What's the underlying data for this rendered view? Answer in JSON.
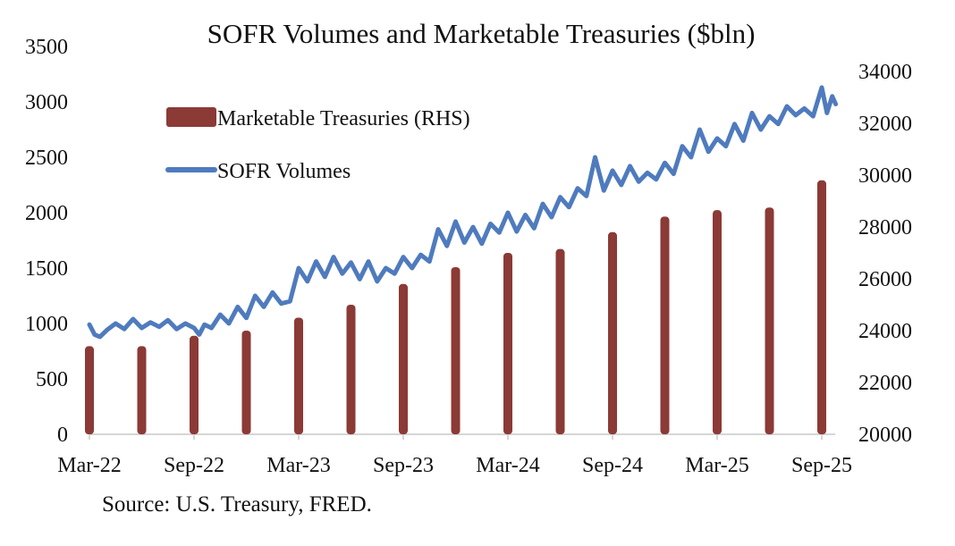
{
  "chart_data": {
    "type": "bar+line",
    "title": "SOFR Volumes and Marketable Treasuries ($bln)",
    "source": "Source: U.S. Treasury, FRED.",
    "legend": {
      "placement": "top-left",
      "entries": [
        {
          "name": "Marketable Treasuries (RHS)",
          "kind": "bar",
          "color": "#8B3A36"
        },
        {
          "name": "SOFR Volumes",
          "kind": "line",
          "color": "#4F7BBE"
        }
      ]
    },
    "x_axis": {
      "tick_labels": [
        "Mar-22",
        "Sep-22",
        "Mar-23",
        "Sep-23",
        "Mar-24",
        "Sep-24",
        "Mar-25",
        "Sep-25"
      ],
      "range_months_from_mar22": [
        0,
        42.8
      ]
    },
    "y_left": {
      "ylim": [
        0,
        3500
      ],
      "ticks": [
        0,
        500,
        1000,
        1500,
        2000,
        2500,
        3000,
        3500
      ],
      "tick_labels": [
        "0",
        "500",
        "1000",
        "1500",
        "2000",
        "2500",
        "3000",
        "3500"
      ]
    },
    "y_right": {
      "ylim": [
        20000,
        34000
      ],
      "ticks": [
        20000,
        22000,
        24000,
        26000,
        28000,
        30000,
        32000,
        34000
      ],
      "tick_labels": [
        "20000",
        "22000",
        "24000",
        "26000",
        "28000",
        "30000",
        "32000",
        "34000"
      ]
    },
    "grid": false,
    "bars": {
      "name": "Marketable Treasuries (RHS)",
      "axis": "right",
      "categories": [
        "Mar-22",
        "Jun-22",
        "Sep-22",
        "Dec-22",
        "Mar-23",
        "Jun-23",
        "Sep-23",
        "Dec-23",
        "Mar-24",
        "Jun-24",
        "Sep-24",
        "Dec-24",
        "Mar-25",
        "Jun-25",
        "Sep-25"
      ],
      "x_months": [
        0,
        3,
        6,
        9,
        12,
        15,
        18,
        21,
        24,
        27,
        30,
        33,
        36,
        39,
        42
      ],
      "values": [
        23400,
        23400,
        23800,
        24000,
        24500,
        25000,
        25800,
        26450,
        27000,
        27150,
        27800,
        28400,
        28650,
        28750,
        29800
      ]
    },
    "line": {
      "name": "SOFR Volumes",
      "axis": "left",
      "x_months": [
        0,
        0.3,
        0.6,
        1,
        1.5,
        2,
        2.5,
        3,
        3.5,
        4,
        4.5,
        5,
        5.5,
        6,
        6.3,
        6.6,
        7,
        7.5,
        8,
        8.5,
        9,
        9.5,
        10,
        10.5,
        11,
        11.5,
        12,
        12.5,
        13,
        13.5,
        14,
        14.5,
        15,
        15.5,
        16,
        16.5,
        17,
        17.5,
        18,
        18.5,
        19,
        19.5,
        20,
        20.5,
        21,
        21.5,
        22,
        22.5,
        23,
        23.5,
        24,
        24.5,
        25,
        25.5,
        26,
        26.5,
        27,
        27.5,
        28,
        28.5,
        29,
        29.5,
        30,
        30.5,
        31,
        31.5,
        32,
        32.5,
        33,
        33.5,
        34,
        34.5,
        35,
        35.5,
        36,
        36.5,
        37,
        37.5,
        38,
        38.5,
        39,
        39.5,
        40,
        40.5,
        41,
        41.5,
        42,
        42.3,
        42.6,
        42.8
      ],
      "values": [
        990,
        900,
        880,
        940,
        1000,
        950,
        1040,
        960,
        1010,
        970,
        1030,
        950,
        1000,
        960,
        900,
        990,
        960,
        1080,
        1000,
        1150,
        1050,
        1250,
        1150,
        1280,
        1180,
        1200,
        1500,
        1380,
        1560,
        1420,
        1600,
        1450,
        1550,
        1400,
        1560,
        1380,
        1500,
        1450,
        1600,
        1500,
        1620,
        1560,
        1850,
        1700,
        1920,
        1730,
        1870,
        1720,
        1900,
        1820,
        2000,
        1830,
        1980,
        1860,
        2080,
        1960,
        2140,
        2050,
        2220,
        2150,
        2500,
        2200,
        2380,
        2250,
        2420,
        2280,
        2360,
        2300,
        2450,
        2350,
        2600,
        2500,
        2750,
        2550,
        2670,
        2600,
        2800,
        2650,
        2900,
        2750,
        2870,
        2800,
        2960,
        2880,
        2940,
        2870,
        3130,
        2900,
        3050,
        2980
      ]
    }
  }
}
